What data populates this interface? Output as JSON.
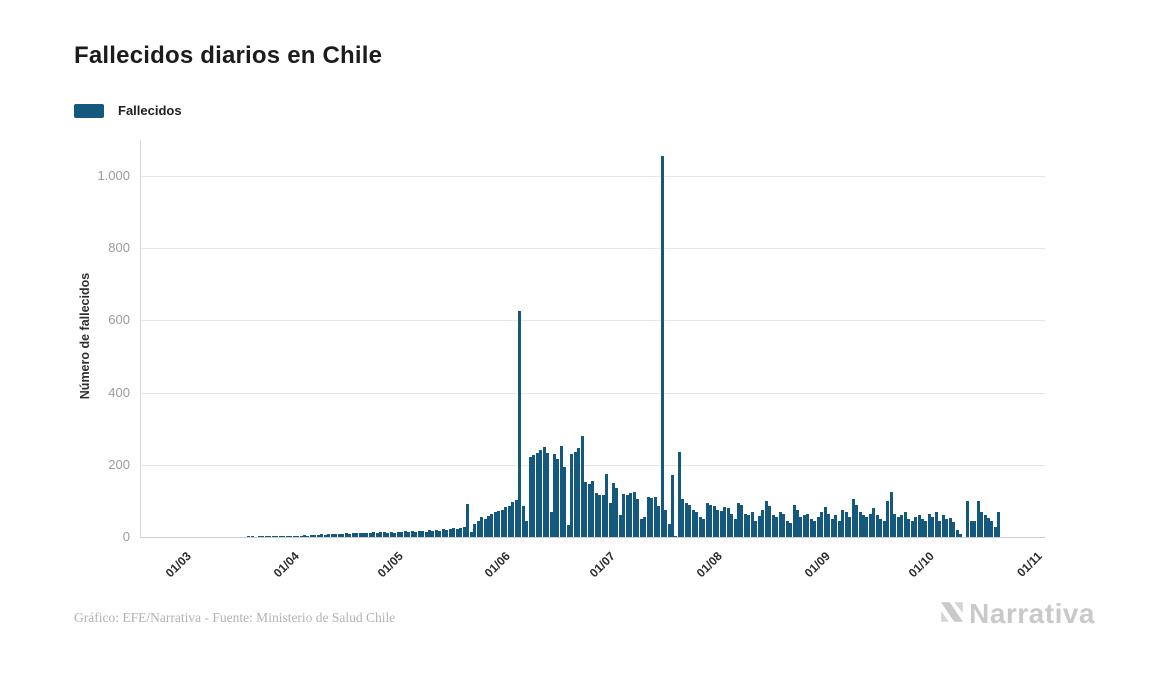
{
  "page": {
    "title": "Fallecidos diarios en Chile"
  },
  "legend": {
    "items": [
      {
        "label": "Fallecidos",
        "color": "#14587E"
      }
    ]
  },
  "chart_data": {
    "type": "bar",
    "title": "Fallecidos diarios en Chile",
    "xlabel": "",
    "ylabel": "Número de fallecidos",
    "ylim": [
      0,
      1100
    ],
    "grid": true,
    "legend_position": "top-left",
    "bar_color": "#14587E",
    "y_ticks": [
      {
        "label": "0",
        "value": 0
      },
      {
        "label": "200",
        "value": 200
      },
      {
        "label": "400",
        "value": 400
      },
      {
        "label": "600",
        "value": 600
      },
      {
        "label": "800",
        "value": 800
      },
      {
        "label": "1.000",
        "value": 1000
      }
    ],
    "x_ticks": [
      {
        "label": "01/03",
        "day": 0
      },
      {
        "label": "01/04",
        "day": 31
      },
      {
        "label": "01/05",
        "day": 61
      },
      {
        "label": "01/06",
        "day": 92
      },
      {
        "label": "01/07",
        "day": 122
      },
      {
        "label": "01/08",
        "day": 153
      },
      {
        "label": "01/09",
        "day": 184
      },
      {
        "label": "01/10",
        "day": 214
      },
      {
        "label": "01/11",
        "day": 245
      }
    ],
    "series": [
      {
        "name": "Fallecidos",
        "start_date": "01/03",
        "frequency": "daily",
        "values": [
          0,
          0,
          0,
          0,
          0,
          0,
          0,
          0,
          0,
          0,
          0,
          0,
          0,
          0,
          0,
          0,
          0,
          0,
          0,
          0,
          1,
          1,
          0,
          1,
          1,
          2,
          1,
          2,
          2,
          2,
          3,
          3,
          2,
          3,
          4,
          3,
          5,
          4,
          5,
          6,
          5,
          7,
          6,
          8,
          7,
          9,
          8,
          9,
          10,
          9,
          11,
          10,
          12,
          11,
          10,
          12,
          13,
          12,
          14,
          13,
          12,
          14,
          12,
          15,
          13,
          16,
          14,
          17,
          15,
          18,
          16,
          15,
          19,
          17,
          20,
          18,
          21,
          19,
          22,
          24,
          21,
          26,
          28,
          92,
          15,
          35,
          45,
          55,
          49,
          57,
          63,
          68,
          71,
          76,
          83,
          87,
          96,
          102,
          627,
          85,
          45,
          222,
          226,
          232,
          242,
          248,
          232,
          70,
          231,
          216,
          252,
          195,
          33,
          229,
          236,
          247,
          279,
          152,
          146,
          155,
          121,
          116,
          117,
          174,
          95,
          150,
          135,
          60,
          118,
          117,
          121,
          125,
          104,
          50,
          55,
          110,
          108,
          111,
          85,
          1057,
          75,
          35,
          172,
          4,
          235,
          104,
          95,
          90,
          75,
          70,
          55,
          50,
          94,
          90,
          85,
          75,
          72,
          84,
          80,
          65,
          50,
          95,
          89,
          65,
          60,
          70,
          45,
          59,
          75,
          100,
          85,
          60,
          55,
          70,
          64,
          45,
          40,
          89,
          75,
          55,
          60,
          64,
          50,
          45,
          55,
          70,
          84,
          64,
          50,
          60,
          45,
          75,
          70,
          55,
          104,
          90,
          70,
          60,
          55,
          64,
          80,
          60,
          50,
          45,
          99,
          125,
          64,
          55,
          60,
          70,
          50,
          45,
          55,
          60,
          50,
          45,
          64,
          55,
          69,
          45,
          60,
          50,
          52,
          42,
          20,
          8,
          0,
          99,
          45,
          44,
          99,
          70,
          60,
          52,
          45,
          28,
          70
        ]
      }
    ]
  },
  "footer": {
    "credit": "Gráfico: EFE/Narrativa - Fuente: Ministerio de Salud Chile"
  },
  "brand": {
    "text": "Narrativa"
  }
}
